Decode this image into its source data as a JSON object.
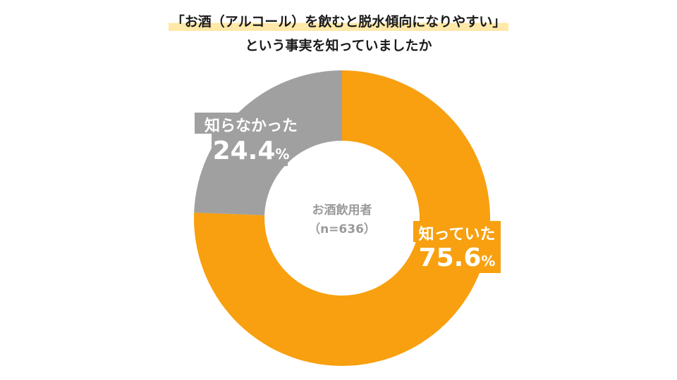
{
  "title": {
    "line1": "「お酒（アルコール）を飲むと脱水傾向になりやすい」",
    "line2": "という事実を知っていましたか"
  },
  "center": {
    "line1": "お酒飲用者",
    "line2": "（n=636）"
  },
  "chart_data": {
    "type": "pie",
    "donut": true,
    "categories": [
      "知っていた",
      "知らなかった"
    ],
    "values": [
      75.6,
      24.4
    ],
    "value_labels": [
      "75.6",
      "24.4"
    ],
    "unit": "%",
    "colors": [
      "#f8a00f",
      "#a0a0a0"
    ],
    "start": "12 o'clock",
    "direction": "clockwise"
  }
}
